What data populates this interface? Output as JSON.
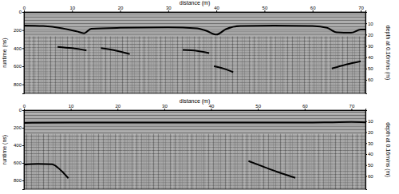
{
  "chart_data": [
    {
      "type": "line",
      "xlabel": "distance (m)",
      "ylabel": "runtime (ns)",
      "y2label": "depth at 0.16m/ns (m)",
      "xlim": [
        0,
        71
      ],
      "xticks": [
        0,
        10,
        20,
        30,
        40,
        50,
        60,
        70
      ],
      "ylim": [
        0,
        900
      ],
      "yticks": [
        0,
        200,
        400,
        600,
        800
      ],
      "y2lim": [
        0,
        72
      ],
      "y2ticks": [
        10,
        20,
        30,
        40,
        50,
        60
      ],
      "series": [
        {
          "color": "#000000",
          "x": [
            0,
            4,
            8,
            11,
            12.5,
            14,
            20,
            30,
            36,
            38,
            40,
            42,
            45,
            52,
            60,
            63,
            65,
            68,
            70,
            71
          ],
          "values": [
            150,
            155,
            180,
            215,
            235,
            185,
            175,
            170,
            180,
            210,
            250,
            190,
            155,
            150,
            155,
            175,
            225,
            230,
            195,
            195
          ]
        },
        {
          "color": "#000000",
          "x": [
            7,
            10,
            13
          ],
          "values": [
            385,
            400,
            425
          ]
        },
        {
          "color": "#000000",
          "x": [
            16,
            19,
            22
          ],
          "values": [
            400,
            425,
            465
          ]
        },
        {
          "color": "#000000",
          "x": [
            33,
            36,
            38.5
          ],
          "values": [
            420,
            430,
            455
          ]
        },
        {
          "color": "#000000",
          "x": [
            39.5,
            41.5,
            43.5
          ],
          "values": [
            600,
            625,
            665
          ]
        },
        {
          "color": "#000000",
          "x": [
            64,
            67,
            70
          ],
          "values": [
            625,
            580,
            545
          ]
        }
      ]
    },
    {
      "type": "line",
      "xlabel": "distance (m)",
      "ylabel": "runtime (ns)",
      "y2label": "depth at 0.16m/ns (m)",
      "xlim": [
        0,
        73
      ],
      "xticks": [
        0,
        10,
        20,
        30,
        40,
        50,
        60,
        70
      ],
      "ylim": [
        0,
        900
      ],
      "yticks": [
        0,
        200,
        400,
        600,
        800
      ],
      "y2lim": [
        0,
        72
      ],
      "y2ticks": [
        10,
        20,
        30,
        40,
        50,
        60
      ],
      "series": [
        {
          "color": "#000000",
          "x": [
            0,
            10,
            20,
            30,
            40,
            50,
            60,
            66,
            70,
            73
          ],
          "values": [
            145,
            140,
            140,
            140,
            142,
            140,
            142,
            138,
            135,
            138
          ]
        },
        {
          "color": "#000000",
          "x": [
            0,
            3,
            6,
            8,
            9.5
          ],
          "values": [
            620,
            612,
            615,
            690,
            775
          ]
        },
        {
          "color": "#000000",
          "x": [
            48,
            51,
            54,
            58
          ],
          "values": [
            580,
            640,
            700,
            770
          ]
        }
      ]
    }
  ]
}
